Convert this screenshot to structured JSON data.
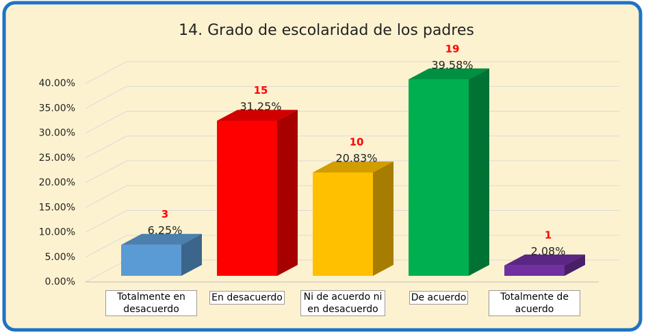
{
  "chart_data": {
    "type": "bar3d",
    "title": "14. Grado de escolaridad de los padres",
    "categories": [
      "Totalmente en desacuerdo",
      "En desacuerdo",
      "Ni de acuerdo ni en desacuerdo",
      "De acuerdo",
      "Totalmente de acuerdo"
    ],
    "values": [
      6.25,
      31.25,
      20.83,
      39.58,
      2.08
    ],
    "value_labels": [
      "6.25%",
      "31.25%",
      "20.83%",
      "39.58%",
      "2.08%"
    ],
    "counts": [
      3,
      15,
      10,
      19,
      1
    ],
    "colors": [
      "#5b9bd5",
      "#ff0000",
      "#ffc000",
      "#00b050",
      "#7030a0"
    ],
    "ylim": [
      0,
      40
    ],
    "yticks": [
      {
        "value": 0,
        "label": "0.00%"
      },
      {
        "value": 5,
        "label": "5.00%"
      },
      {
        "value": 10,
        "label": "10.00%"
      },
      {
        "value": 15,
        "label": "15.00%"
      },
      {
        "value": 20,
        "label": "20.00%"
      },
      {
        "value": 25,
        "label": "25.00%"
      },
      {
        "value": 30,
        "label": "30.00%"
      },
      {
        "value": 35,
        "label": "35.00%"
      },
      {
        "value": 40,
        "label": "40.00%"
      }
    ],
    "grid": true
  }
}
